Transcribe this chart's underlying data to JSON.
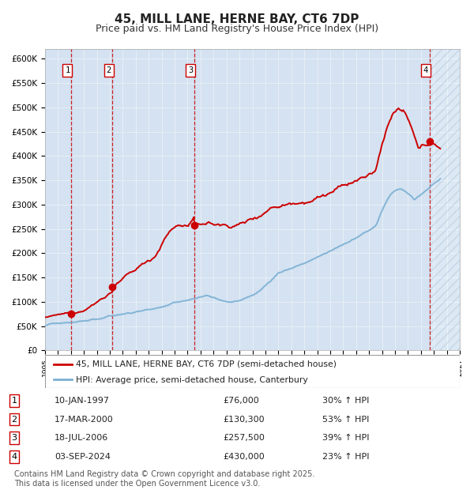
{
  "title": "45, MILL LANE, HERNE BAY, CT6 7DP",
  "subtitle": "Price paid vs. HM Land Registry's House Price Index (HPI)",
  "ylim": [
    0,
    620000
  ],
  "yticks": [
    0,
    50000,
    100000,
    150000,
    200000,
    250000,
    300000,
    350000,
    400000,
    450000,
    500000,
    550000,
    600000
  ],
  "ytick_labels": [
    "£0",
    "£50K",
    "£100K",
    "£150K",
    "£200K",
    "£250K",
    "£300K",
    "£350K",
    "£400K",
    "£450K",
    "£500K",
    "£550K",
    "£600K"
  ],
  "background_color": "#ffffff",
  "plot_bg_color": "#dce9f5",
  "grid_color": "#ffffff",
  "red_line_color": "#cc0000",
  "blue_line_color": "#7aafd4",
  "title_fontsize": 11,
  "subtitle_fontsize": 9,
  "transactions": [
    {
      "num": 1,
      "date_label": "10-JAN-1997",
      "x_year": 1997.03,
      "price": 76000,
      "hpi_pct": "30% ↑ HPI"
    },
    {
      "num": 2,
      "date_label": "17-MAR-2000",
      "x_year": 2000.21,
      "price": 130300,
      "hpi_pct": "53% ↑ HPI"
    },
    {
      "num": 3,
      "date_label": "18-JUL-2006",
      "x_year": 2006.54,
      "price": 257500,
      "hpi_pct": "39% ↑ HPI"
    },
    {
      "num": 4,
      "date_label": "03-SEP-2024",
      "x_year": 2024.67,
      "price": 430000,
      "hpi_pct": "23% ↑ HPI"
    }
  ],
  "legend_entries": [
    "45, MILL LANE, HERNE BAY, CT6 7DP (semi-detached house)",
    "HPI: Average price, semi-detached house, Canterbury"
  ],
  "footer": "Contains HM Land Registry data © Crown copyright and database right 2025.\nThis data is licensed under the Open Government Licence v3.0.",
  "xmin": 1995.0,
  "xmax": 2027.0,
  "hatch_start": 2024.67,
  "footnote_fontsize": 7
}
